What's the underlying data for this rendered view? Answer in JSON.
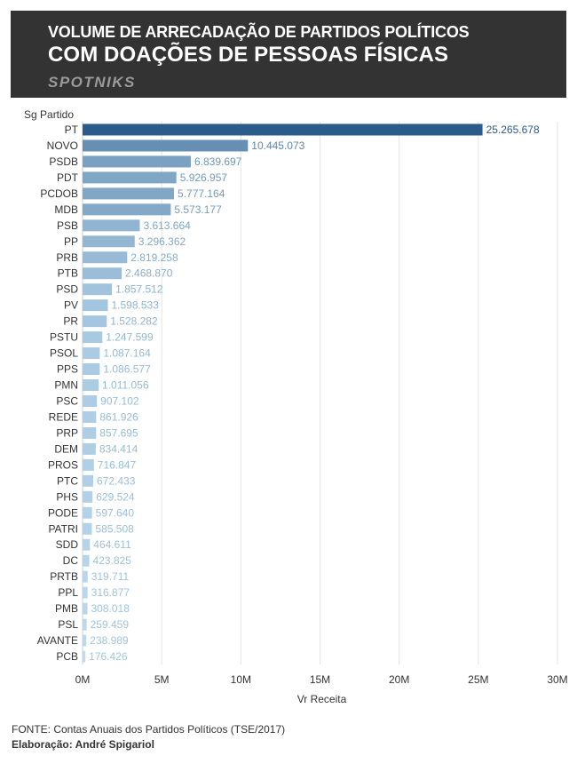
{
  "header": {
    "title_line1": "VOLUME DE ARRECADAÇÃO DE PARTIDOS POLÍTICOS",
    "title_line2": "COM DOAÇÕES DE PESSOAS FÍSICAS",
    "brand": "SPOTNIKS",
    "background": "#333333"
  },
  "footer": {
    "source": "FONTE: Contas Anuais dos Partidos Políticos (TSE/2017)",
    "credit": "Elaboração: André Spigariol"
  },
  "chart_data": {
    "type": "bar",
    "orientation": "horizontal",
    "ylabel": "Sg Partido",
    "xlabel": "Vr Receita",
    "xlim": [
      0,
      30000000
    ],
    "xticks": [
      0,
      5000000,
      10000000,
      15000000,
      20000000,
      25000000,
      30000000
    ],
    "xtick_labels": [
      "0M",
      "5M",
      "10M",
      "15M",
      "20M",
      "25M",
      "30M"
    ],
    "grid": true,
    "color_scale": {
      "low": "#c6e3f7",
      "high": "#2b5b8a"
    },
    "categories": [
      "PT",
      "NOVO",
      "PSDB",
      "PDT",
      "PCDOB",
      "MDB",
      "PSB",
      "PP",
      "PRB",
      "PTB",
      "PSD",
      "PV",
      "PR",
      "PSTU",
      "PSOL",
      "PPS",
      "PMN",
      "PSC",
      "REDE",
      "PRP",
      "DEM",
      "PROS",
      "PTC",
      "PHS",
      "PODE",
      "PATRI",
      "SDD",
      "DC",
      "PRTB",
      "PPL",
      "PMB",
      "PSL",
      "AVANTE",
      "PCB"
    ],
    "values": [
      25265678,
      10445073,
      6839697,
      5926957,
      5777164,
      5573177,
      3613664,
      3296362,
      2819258,
      2468870,
      1857512,
      1598533,
      1528282,
      1247599,
      1087164,
      1086577,
      1011056,
      907102,
      861926,
      857695,
      834414,
      716847,
      672433,
      629524,
      597640,
      585508,
      464611,
      423825,
      319711,
      316877,
      308018,
      259459,
      238989,
      176426
    ],
    "value_labels": [
      "25.265.678",
      "10.445.073",
      "6.839.697",
      "5.926.957",
      "5.777.164",
      "5.573.177",
      "3.613.664",
      "3.296.362",
      "2.819.258",
      "2.468.870",
      "1.857.512",
      "1.598.533",
      "1.528.282",
      "1.247.599",
      "1.087.164",
      "1.086.577",
      "1.011.056",
      "907.102",
      "861.926",
      "857.695",
      "834.414",
      "716.847",
      "672.433",
      "629.524",
      "597.640",
      "585.508",
      "464.611",
      "423.825",
      "319.711",
      "316.877",
      "308.018",
      "259.459",
      "238.989",
      "176.426"
    ]
  }
}
